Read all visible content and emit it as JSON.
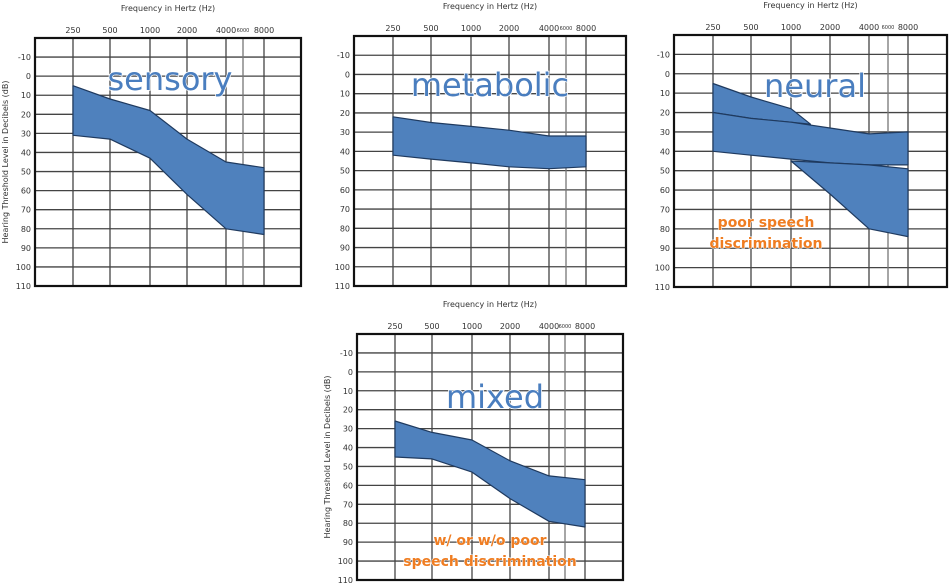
{
  "colors": {
    "band_fill": "#4f81bd",
    "band_stroke": "#1f3a5f",
    "label": "#4a7ebf",
    "note": "#ef7d22",
    "grid": "#333333"
  },
  "chart_data": [
    {
      "type": "area",
      "title": "sensory",
      "xlabel": "Frequency in Hertz (Hz)",
      "ylabel": "Hearing Threshold Level in Decibels (dB)",
      "x_ticks": [
        "250",
        "500",
        "1000",
        "2000",
        "4000",
        "6000",
        "8000"
      ],
      "y_ticks": [
        "-10",
        "0",
        "10",
        "20",
        "30",
        "40",
        "50",
        "60",
        "70",
        "80",
        "90",
        "100",
        "110"
      ],
      "ylim": [
        -20,
        110
      ],
      "y_inverted": true,
      "show_ylabel": true,
      "show_xlabel": true,
      "bands": [
        {
          "name": "sensory range",
          "x": [
            "250",
            "500",
            "1000",
            "2000",
            "4000",
            "8000"
          ],
          "upper": [
            5,
            12,
            18,
            33,
            45,
            48
          ],
          "lower": [
            31,
            33,
            43,
            62,
            80,
            83
          ]
        }
      ],
      "notes": []
    },
    {
      "type": "area",
      "title": "metabolic",
      "xlabel": "Frequency in Hertz (Hz)",
      "ylabel": "",
      "x_ticks": [
        "250",
        "500",
        "1000",
        "2000",
        "4000",
        "6000",
        "8000"
      ],
      "y_ticks": [
        "-10",
        "0",
        "10",
        "20",
        "30",
        "40",
        "50",
        "60",
        "70",
        "80",
        "90",
        "100",
        "110"
      ],
      "ylim": [
        -20,
        110
      ],
      "y_inverted": true,
      "show_ylabel": false,
      "show_xlabel": true,
      "bands": [
        {
          "name": "metabolic range",
          "x": [
            "250",
            "500",
            "1000",
            "2000",
            "4000",
            "8000"
          ],
          "upper": [
            22,
            25,
            27,
            29,
            32,
            32
          ],
          "lower": [
            42,
            44,
            46,
            48,
            49,
            48
          ]
        }
      ],
      "notes": []
    },
    {
      "type": "area",
      "title": "neural",
      "xlabel": "Frequency in Hertz (Hz)",
      "ylabel": "",
      "x_ticks": [
        "250",
        "500",
        "1000",
        "2000",
        "4000",
        "6000",
        "8000"
      ],
      "y_ticks": [
        "-10",
        "0",
        "10",
        "20",
        "30",
        "40",
        "50",
        "60",
        "70",
        "80",
        "90",
        "100",
        "110"
      ],
      "ylim": [
        -20,
        110
      ],
      "y_inverted": true,
      "show_ylabel": false,
      "show_xlabel": true,
      "bands": [
        {
          "name": "neural upper range",
          "x": [
            "250",
            "500",
            "1000",
            "1414"
          ],
          "upper": [
            5,
            12,
            18,
            26
          ],
          "lower": [
            20,
            23,
            25,
            26
          ]
        },
        {
          "name": "neural mid range",
          "x": [
            "250",
            "500",
            "1000",
            "2000",
            "4000",
            "8000"
          ],
          "upper": [
            20,
            23,
            25,
            28,
            31,
            30
          ],
          "lower": [
            40,
            42,
            44,
            46,
            47,
            47
          ]
        },
        {
          "name": "neural lower range",
          "x": [
            "1000",
            "2000",
            "4000",
            "8000"
          ],
          "upper": [
            45,
            46,
            47,
            49
          ],
          "lower": [
            45,
            62,
            80,
            84
          ]
        }
      ],
      "notes": [
        "poor speech",
        "discrimination"
      ]
    },
    {
      "type": "area",
      "title": "mixed",
      "xlabel": "Frequency in Hertz (Hz)",
      "ylabel": "Hearing Threshold Level in Decibels (dB)",
      "x_ticks": [
        "250",
        "500",
        "1000",
        "2000",
        "4000",
        "6000",
        "8000"
      ],
      "y_ticks": [
        "-10",
        "0",
        "10",
        "20",
        "30",
        "40",
        "50",
        "60",
        "70",
        "80",
        "90",
        "100",
        "110"
      ],
      "ylim": [
        -20,
        110
      ],
      "y_inverted": true,
      "show_ylabel": true,
      "show_xlabel": true,
      "bands": [
        {
          "name": "mixed range",
          "x": [
            "250",
            "500",
            "1000",
            "2000",
            "4000",
            "8000"
          ],
          "upper": [
            26,
            32,
            36,
            47,
            55,
            57
          ],
          "lower": [
            45,
            46,
            53,
            67,
            79,
            82
          ]
        }
      ],
      "notes": [
        "w/ or w/o poor",
        "speech discrimination"
      ]
    }
  ]
}
